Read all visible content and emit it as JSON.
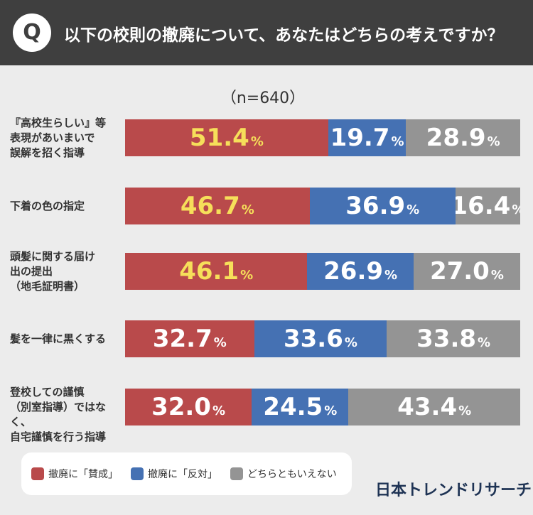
{
  "header": {
    "badge": "Q",
    "title": "以下の校則の撤廃について、あなたはどちらの考えですか？"
  },
  "chart_data": {
    "type": "bar",
    "orientation": "horizontal-stacked",
    "sample_label": "（n=640）",
    "categories": [
      [
        "『高校生らしい』等",
        "表現があいまいで",
        "誤解を招く指導"
      ],
      [
        "下着の色の指定"
      ],
      [
        "頭髪に関する届け",
        "出の提出",
        "（地毛証明書）"
      ],
      [
        "髪を一律に黒くする"
      ],
      [
        "登校しての謹慎",
        "（別室指導）ではなく、",
        "自宅謹慎を行う指導"
      ]
    ],
    "series": [
      {
        "name": "撤廃に「賛成」",
        "color": "#b94a4b",
        "values": [
          "51.4",
          "46.7",
          "46.1",
          "32.7",
          "32.0"
        ]
      },
      {
        "name": "撤廃に「反対」",
        "color": "#4571b3",
        "values": [
          "19.7",
          "36.9",
          "26.9",
          "33.6",
          "24.5"
        ]
      },
      {
        "name": "どちらともいえない",
        "color": "#949494",
        "values": [
          "28.9",
          "16.4",
          "27.0",
          "33.8",
          "43.4"
        ]
      }
    ],
    "highlight_color": "#f6df5a",
    "highlighted": [
      true,
      true,
      true,
      false,
      false
    ],
    "unit": "%"
  },
  "brand": "日本トレンドリサーチ"
}
